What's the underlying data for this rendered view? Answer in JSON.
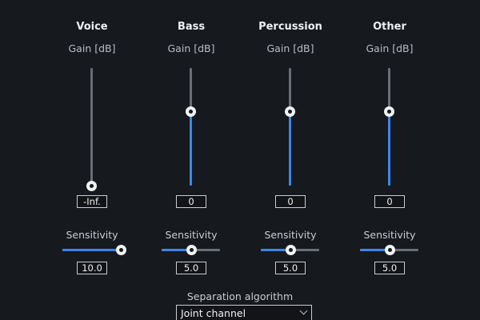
{
  "channels": [
    {
      "title": "Voice",
      "gain_label": "Gain [dB]",
      "gain_value": "-Inf.",
      "gain_level": 0.0,
      "sensitivity_label": "Sensitivity",
      "sensitivity_value": "10.0",
      "sensitivity_level": 1.0
    },
    {
      "title": "Bass",
      "gain_label": "Gain [dB]",
      "gain_value": "0",
      "gain_level": 0.63,
      "sensitivity_label": "Sensitivity",
      "sensitivity_value": "5.0",
      "sensitivity_level": 0.5
    },
    {
      "title": "Percussion",
      "gain_label": "Gain [dB]",
      "gain_value": "0",
      "gain_level": 0.63,
      "sensitivity_label": "Sensitivity",
      "sensitivity_value": "5.0",
      "sensitivity_level": 0.5
    },
    {
      "title": "Other",
      "gain_label": "Gain [dB]",
      "gain_value": "0",
      "gain_level": 0.63,
      "sensitivity_label": "Sensitivity",
      "sensitivity_value": "5.0",
      "sensitivity_level": 0.5
    }
  ],
  "separation": {
    "label": "Separation algorithm",
    "selected": "Joint channel"
  },
  "colors": {
    "background": "#16191e",
    "accent": "#3d86ec",
    "track": "#6a6e75",
    "knob": "#f2f3f5"
  },
  "icons": {
    "dropdown": "chevron-down-icon"
  }
}
